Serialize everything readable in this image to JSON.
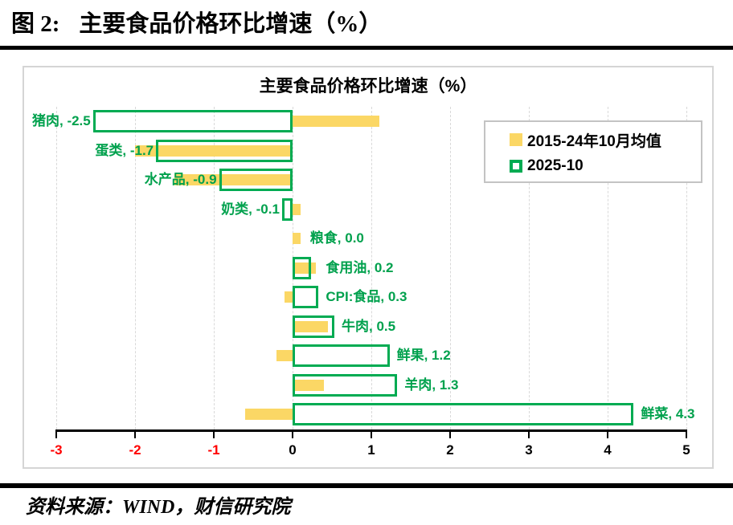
{
  "header": {
    "figure_label": "图 2:",
    "title": "主要食品价格环比增速（%）"
  },
  "source": {
    "text": "资料来源：WIND，财信研究院"
  },
  "chart_data": {
    "type": "bar",
    "orientation": "horizontal",
    "title": "主要食品价格环比增速（%）",
    "categories": [
      "猪肉",
      "蛋类",
      "水产品",
      "奶类",
      "粮食",
      "食用油",
      "CPI:食品",
      "牛肉",
      "鲜果",
      "羊肉",
      "鲜菜"
    ],
    "series": [
      {
        "name": "2015-24年10月均值",
        "style": "filled",
        "color": "#fbd765",
        "values": [
          1.1,
          -2.0,
          -1.5,
          0.1,
          0.1,
          0.3,
          -0.1,
          0.45,
          -0.2,
          0.4,
          -0.6
        ]
      },
      {
        "name": "2025-10",
        "style": "outline",
        "color": "#00ab52",
        "values": [
          -2.5,
          -1.7,
          -0.9,
          -0.1,
          0.0,
          0.2,
          0.3,
          0.5,
          1.2,
          1.3,
          4.3
        ]
      }
    ],
    "data_labels": [
      "猪肉, -2.5",
      "蛋类, -1.7",
      "水产品, -0.9",
      "奶类, -0.1",
      "粮食, 0.0",
      "食用油, 0.2",
      "CPI:食品, 0.3",
      "牛肉, 0.5",
      "鲜果, 1.2",
      "羊肉, 1.3",
      "鲜菜, 4.3"
    ],
    "label_color": "#00a14d",
    "xlim": [
      -3,
      5
    ],
    "x_ticks": [
      -3,
      -2,
      -1,
      0,
      1,
      2,
      3,
      4,
      5
    ],
    "negative_tick_color": "#ff0000",
    "positive_tick_color": "#000000",
    "grid": "vertical-dashed",
    "legend_position": "top-right"
  }
}
